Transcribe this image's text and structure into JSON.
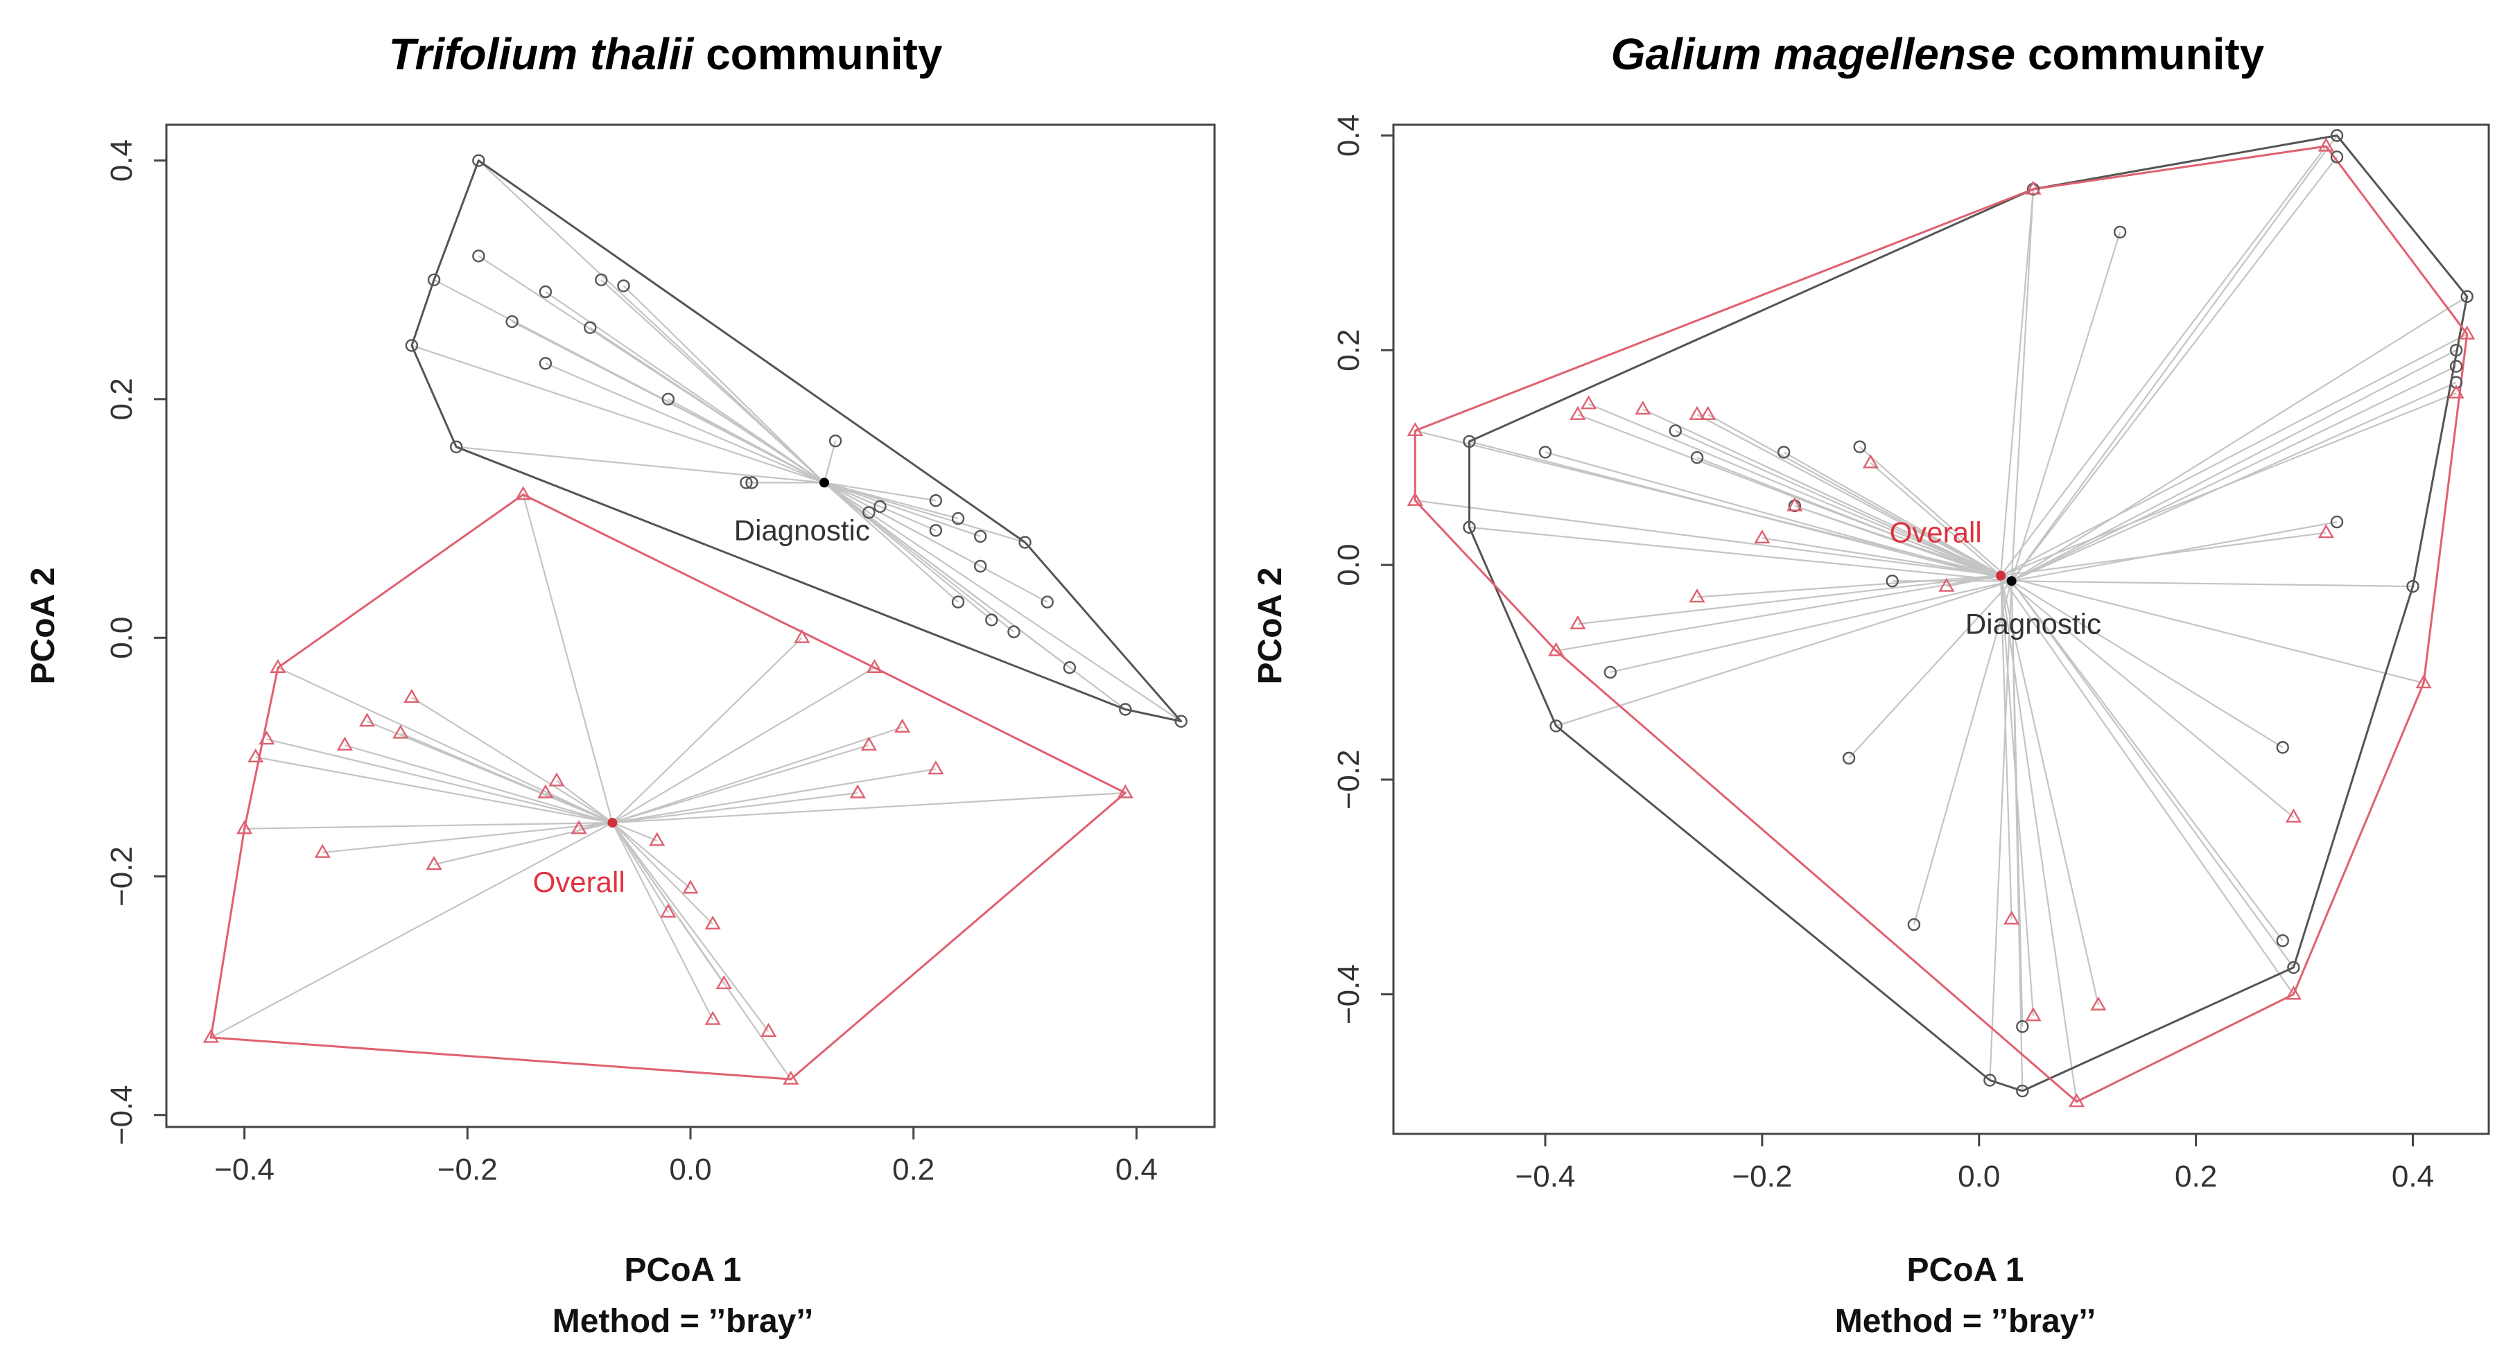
{
  "chart_data": [
    {
      "type": "scatter",
      "title_italic": "Trifolium thalii",
      "title_rest": " community",
      "xlabel": "PCoA 1",
      "ylabel": "PCoA 2",
      "method": "Method = ’’bray’’",
      "xlim": [
        -0.47,
        0.47
      ],
      "ylim": [
        -0.41,
        0.43
      ],
      "xticks": [
        -0.4,
        -0.2,
        0.0,
        0.2,
        0.4
      ],
      "yticks": [
        -0.4,
        -0.2,
        0.0,
        0.2,
        0.4
      ],
      "colors": {
        "diagnostic": "#555555",
        "overall": "#e06070",
        "spoke": "#c4c4c4"
      },
      "groups": [
        {
          "name": "Diagnostic",
          "centroid": [
            0.12,
            0.13
          ],
          "label_offset": [
            -0.02,
            -0.04
          ],
          "points": [
            [
              -0.19,
              0.4
            ],
            [
              -0.23,
              0.3
            ],
            [
              -0.25,
              0.245
            ],
            [
              -0.19,
              0.32
            ],
            [
              -0.16,
              0.265
            ],
            [
              -0.13,
              0.23
            ],
            [
              -0.13,
              0.29
            ],
            [
              -0.09,
              0.26
            ],
            [
              -0.08,
              0.3
            ],
            [
              -0.06,
              0.295
            ],
            [
              -0.02,
              0.2
            ],
            [
              -0.21,
              0.16
            ],
            [
              0.05,
              0.13
            ],
            [
              0.055,
              0.13
            ],
            [
              0.13,
              0.165
            ],
            [
              0.16,
              0.105
            ],
            [
              0.17,
              0.11
            ],
            [
              0.22,
              0.115
            ],
            [
              0.24,
              0.1
            ],
            [
              0.26,
              0.085
            ],
            [
              0.22,
              0.09
            ],
            [
              0.26,
              0.06
            ],
            [
              0.24,
              0.03
            ],
            [
              0.27,
              0.015
            ],
            [
              0.29,
              0.005
            ],
            [
              0.3,
              0.08
            ],
            [
              0.32,
              0.03
            ],
            [
              0.34,
              -0.025
            ],
            [
              0.39,
              -0.06
            ],
            [
              0.44,
              -0.07
            ]
          ],
          "hull": [
            [
              -0.19,
              0.4
            ],
            [
              0.3,
              0.08
            ],
            [
              0.44,
              -0.07
            ],
            [
              0.39,
              -0.06
            ],
            [
              -0.21,
              0.16
            ],
            [
              -0.25,
              0.245
            ],
            [
              -0.23,
              0.3
            ]
          ]
        },
        {
          "name": "Overall",
          "centroid": [
            -0.07,
            -0.155
          ],
          "label_offset": [
            -0.03,
            -0.05
          ],
          "points": [
            [
              -0.15,
              0.12
            ],
            [
              -0.37,
              -0.025
            ],
            [
              -0.25,
              -0.05
            ],
            [
              -0.29,
              -0.07
            ],
            [
              -0.26,
              -0.08
            ],
            [
              -0.31,
              -0.09
            ],
            [
              -0.38,
              -0.085
            ],
            [
              -0.39,
              -0.1
            ],
            [
              -0.12,
              -0.12
            ],
            [
              -0.13,
              -0.13
            ],
            [
              -0.1,
              -0.16
            ],
            [
              -0.4,
              -0.16
            ],
            [
              -0.33,
              -0.18
            ],
            [
              -0.23,
              -0.19
            ],
            [
              -0.03,
              -0.17
            ],
            [
              0.0,
              -0.21
            ],
            [
              -0.02,
              -0.23
            ],
            [
              0.02,
              -0.24
            ],
            [
              0.03,
              -0.29
            ],
            [
              0.02,
              -0.32
            ],
            [
              0.07,
              -0.33
            ],
            [
              0.1,
              0.0
            ],
            [
              0.19,
              -0.075
            ],
            [
              0.16,
              -0.09
            ],
            [
              0.22,
              -0.11
            ],
            [
              0.15,
              -0.13
            ],
            [
              0.39,
              -0.13
            ],
            [
              0.165,
              -0.025
            ],
            [
              0.09,
              -0.37
            ],
            [
              -0.43,
              -0.335
            ]
          ],
          "hull": [
            [
              -0.15,
              0.12
            ],
            [
              0.165,
              -0.025
            ],
            [
              0.39,
              -0.13
            ],
            [
              0.09,
              -0.37
            ],
            [
              -0.43,
              -0.335
            ],
            [
              -0.4,
              -0.16
            ],
            [
              -0.37,
              -0.025
            ]
          ]
        }
      ]
    },
    {
      "type": "scatter",
      "title_italic": "Galium magellense",
      "title_rest": " community",
      "xlabel": "PCoA 1",
      "ylabel": "PCoA 2",
      "method": "Method = ’’bray’’",
      "xlim": [
        -0.54,
        0.47
      ],
      "ylim": [
        -0.53,
        0.41
      ],
      "xticks": [
        -0.4,
        -0.2,
        0.0,
        0.2,
        0.4
      ],
      "yticks": [
        -0.4,
        -0.2,
        0.0,
        0.2,
        0.4
      ],
      "colors": {
        "diagnostic": "#555555",
        "overall": "#e06070",
        "spoke": "#c4c4c4"
      },
      "groups": [
        {
          "name": "Diagnostic",
          "centroid": [
            0.03,
            -0.015
          ],
          "label_offset": [
            0.02,
            -0.04
          ],
          "points": [
            [
              0.05,
              0.35
            ],
            [
              0.13,
              0.31
            ],
            [
              0.33,
              0.4
            ],
            [
              0.33,
              0.38
            ],
            [
              0.45,
              0.25
            ],
            [
              0.44,
              0.2
            ],
            [
              0.44,
              0.185
            ],
            [
              0.44,
              0.17
            ],
            [
              0.33,
              0.04
            ],
            [
              0.4,
              -0.02
            ],
            [
              0.28,
              -0.17
            ],
            [
              0.28,
              -0.35
            ],
            [
              0.29,
              -0.375
            ],
            [
              0.04,
              -0.43
            ],
            [
              0.04,
              -0.49
            ],
            [
              0.01,
              -0.48
            ],
            [
              -0.06,
              -0.335
            ],
            [
              -0.12,
              -0.18
            ],
            [
              -0.08,
              -0.015
            ],
            [
              -0.11,
              0.11
            ],
            [
              -0.17,
              0.055
            ],
            [
              -0.18,
              0.105
            ],
            [
              -0.26,
              0.1
            ],
            [
              -0.28,
              0.125
            ],
            [
              -0.4,
              0.105
            ],
            [
              -0.47,
              0.115
            ],
            [
              -0.47,
              0.035
            ],
            [
              -0.34,
              -0.1
            ],
            [
              -0.39,
              -0.15
            ]
          ],
          "hull": [
            [
              0.05,
              0.35
            ],
            [
              0.33,
              0.4
            ],
            [
              0.45,
              0.25
            ],
            [
              0.4,
              -0.02
            ],
            [
              0.29,
              -0.375
            ],
            [
              0.04,
              -0.49
            ],
            [
              0.01,
              -0.48
            ],
            [
              -0.39,
              -0.15
            ],
            [
              -0.47,
              0.035
            ],
            [
              -0.47,
              0.115
            ]
          ]
        },
        {
          "name": "Overall",
          "centroid": [
            0.02,
            -0.01
          ],
          "label_offset": [
            -0.06,
            0.04
          ],
          "points": [
            [
              0.05,
              0.35
            ],
            [
              0.32,
              0.39
            ],
            [
              0.45,
              0.215
            ],
            [
              0.44,
              0.16
            ],
            [
              0.32,
              0.03
            ],
            [
              0.41,
              -0.11
            ],
            [
              0.29,
              -0.235
            ],
            [
              0.29,
              -0.4
            ],
            [
              0.09,
              -0.5
            ],
            [
              0.11,
              -0.41
            ],
            [
              0.05,
              -0.42
            ],
            [
              0.03,
              -0.33
            ],
            [
              -0.03,
              -0.02
            ],
            [
              -0.1,
              0.095
            ],
            [
              -0.17,
              0.055
            ],
            [
              -0.2,
              0.025
            ],
            [
              -0.26,
              0.14
            ],
            [
              -0.25,
              0.14
            ],
            [
              -0.31,
              0.145
            ],
            [
              -0.36,
              0.15
            ],
            [
              -0.37,
              0.14
            ],
            [
              -0.52,
              0.125
            ],
            [
              -0.52,
              0.06
            ],
            [
              -0.37,
              -0.055
            ],
            [
              -0.26,
              -0.03
            ],
            [
              -0.39,
              -0.08
            ]
          ],
          "hull": [
            [
              0.05,
              0.35
            ],
            [
              0.32,
              0.39
            ],
            [
              0.45,
              0.215
            ],
            [
              0.41,
              -0.11
            ],
            [
              0.29,
              -0.4
            ],
            [
              0.09,
              -0.5
            ],
            [
              -0.39,
              -0.08
            ],
            [
              -0.52,
              0.06
            ],
            [
              -0.52,
              0.125
            ]
          ]
        }
      ]
    }
  ]
}
